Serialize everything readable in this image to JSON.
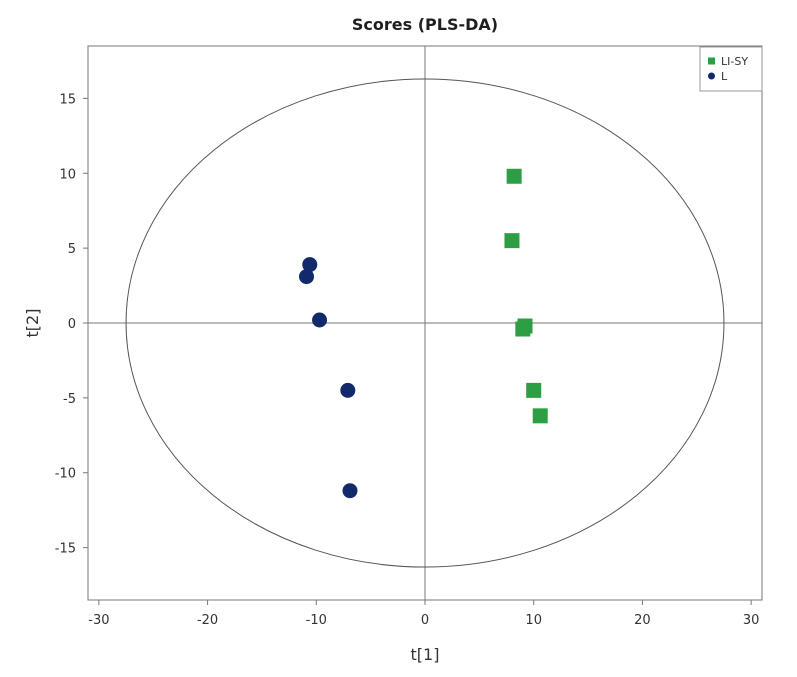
{
  "chart_data": {
    "type": "scatter",
    "title": "Scores (PLS-DA)",
    "xlabel": "t[1]",
    "ylabel": "t[2]",
    "xlim": [
      -31,
      31
    ],
    "ylim": [
      -18.5,
      18.5
    ],
    "xticks": [
      -30,
      -20,
      -10,
      0,
      10,
      20,
      30
    ],
    "yticks": [
      15,
      10,
      5,
      0,
      -5,
      -10,
      -15
    ],
    "legend_position": "top-right",
    "grid": false,
    "reference_lines": {
      "x": 0,
      "y": 0
    },
    "confidence_ellipse": {
      "rx": 27.5,
      "ry": 16.3
    },
    "series": [
      {
        "name": "LI-SY",
        "marker": "square",
        "color": "#2e9e44",
        "points": [
          {
            "x": 8.2,
            "y": 9.8
          },
          {
            "x": 8.0,
            "y": 5.5
          },
          {
            "x": 9.2,
            "y": -0.2
          },
          {
            "x": 9.0,
            "y": -0.4
          },
          {
            "x": 10.0,
            "y": -4.5
          },
          {
            "x": 10.6,
            "y": -6.2
          }
        ]
      },
      {
        "name": "L",
        "marker": "circle",
        "color": "#12296b",
        "points": [
          {
            "x": -10.6,
            "y": 3.9
          },
          {
            "x": -10.9,
            "y": 3.1
          },
          {
            "x": -9.7,
            "y": 0.2
          },
          {
            "x": -7.1,
            "y": -4.5
          },
          {
            "x": -6.9,
            "y": -11.2
          }
        ]
      }
    ]
  }
}
